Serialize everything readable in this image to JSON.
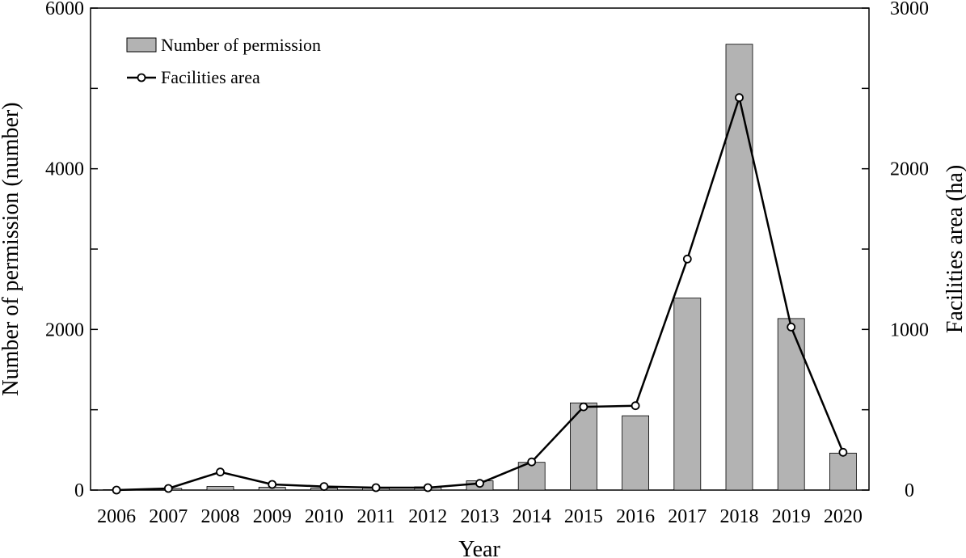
{
  "chart_data": {
    "type": "bar+line",
    "title": "",
    "categories": [
      "2006",
      "2007",
      "2008",
      "2009",
      "2010",
      "2011",
      "2012",
      "2013",
      "2014",
      "2015",
      "2016",
      "2017",
      "2018",
      "2019",
      "2020"
    ],
    "series": [
      {
        "name": "Number of permission",
        "type": "bar",
        "axis": "left",
        "color": "#b3b3b3",
        "values": [
          5,
          20,
          45,
          35,
          25,
          30,
          40,
          115,
          345,
          1085,
          925,
          2390,
          5550,
          2135,
          460
        ]
      },
      {
        "name": "Facilities area",
        "type": "line",
        "axis": "right",
        "color": "#000000",
        "values": [
          0,
          10,
          112,
          35,
          22,
          15,
          15,
          42,
          175,
          518,
          525,
          1438,
          2443,
          1015,
          235
        ]
      }
    ],
    "xlabel": "Year",
    "ylabel_left": "Number of permission (number)",
    "ylabel_right": "Facilities area (ha)",
    "ylim_left": [
      0,
      6000
    ],
    "ylim_right": [
      0,
      3000
    ],
    "yticks_left": [
      "0",
      "2000",
      "4000",
      "6000"
    ],
    "yticks_right": [
      "0",
      "1000",
      "2000",
      "3000"
    ],
    "legend": {
      "position": "top-left",
      "entries": [
        "Number of permission",
        "Facilities area"
      ]
    },
    "grid": false
  }
}
